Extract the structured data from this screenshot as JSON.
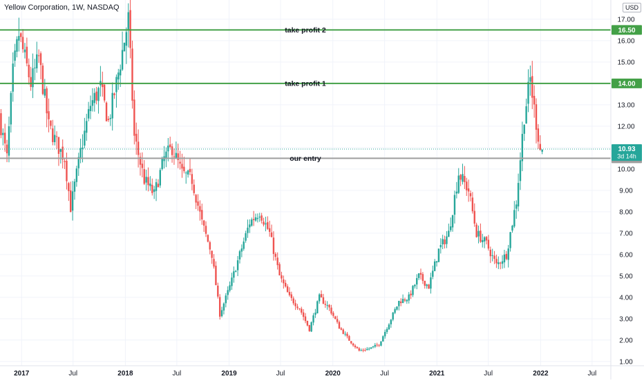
{
  "header": {
    "title": "Yellow Corporation, 1W, NASDAQ",
    "currency": "USD"
  },
  "colors": {
    "up": "#26a69a",
    "down": "#ef5350",
    "level_green": "#43a047",
    "entry_line": "#9e9e9e",
    "axis_text": "#131722",
    "grid": "#f0f3fa"
  },
  "chart_data": {
    "type": "candlestick",
    "title": "Yellow Corporation, 1W, NASDAQ",
    "xlabel": "",
    "ylabel": "",
    "ylim": [
      0.8,
      17.9
    ],
    "x_range": [
      "2016-10-17",
      "2022-09-05"
    ],
    "y_ticks": [
      "1.00",
      "2.00",
      "3.00",
      "4.00",
      "5.00",
      "6.00",
      "7.00",
      "8.00",
      "9.00",
      "10.00",
      "11.00",
      "12.00",
      "13.00",
      "14.00",
      "15.00",
      "16.00",
      "17.00"
    ],
    "x_ticks": [
      {
        "label": "2017",
        "date": "2017-01-01"
      },
      {
        "label": "Jul",
        "date": "2017-07-01"
      },
      {
        "label": "2018",
        "date": "2018-01-01"
      },
      {
        "label": "Jul",
        "date": "2018-07-01"
      },
      {
        "label": "2019",
        "date": "2019-01-01"
      },
      {
        "label": "Jul",
        "date": "2019-07-01"
      },
      {
        "label": "2020",
        "date": "2020-01-01"
      },
      {
        "label": "Jul",
        "date": "2020-07-01"
      },
      {
        "label": "2021",
        "date": "2021-01-01"
      },
      {
        "label": "Jul",
        "date": "2021-07-01"
      },
      {
        "label": "2022",
        "date": "2022-01-01"
      },
      {
        "label": "Jul",
        "date": "2022-07-01"
      }
    ],
    "grid": true,
    "levels": [
      {
        "label": "take profit 2",
        "value": 16.5,
        "price_label": "16.50",
        "style": "green"
      },
      {
        "label": "take profit 1",
        "value": 14.0,
        "price_label": "14.00",
        "style": "green"
      },
      {
        "label": "our entry",
        "value": 10.5,
        "price_label": "10.50",
        "style": "gray"
      }
    ],
    "last_price": {
      "value": 10.93,
      "price_label": "10.93",
      "countdown": "3d 14h"
    },
    "price_path": [
      [
        "2016-10-17",
        12.5
      ],
      [
        "2016-11-14",
        10.5
      ],
      [
        "2016-12-05",
        14.5
      ],
      [
        "2016-12-26",
        16.3
      ],
      [
        "2017-02-06",
        14.0
      ],
      [
        "2017-03-06",
        15.2
      ],
      [
        "2017-04-10",
        12.0
      ],
      [
        "2017-05-15",
        11.0
      ],
      [
        "2017-06-05",
        10.5
      ],
      [
        "2017-06-26",
        8.2
      ],
      [
        "2017-07-31",
        10.8
      ],
      [
        "2017-09-04",
        13.0
      ],
      [
        "2017-10-09",
        13.8
      ],
      [
        "2017-11-06",
        12.2
      ],
      [
        "2017-12-04",
        14.0
      ],
      [
        "2017-12-25",
        15.5
      ],
      [
        "2018-01-15",
        17.0
      ],
      [
        "2018-02-05",
        11.5
      ],
      [
        "2018-03-12",
        9.5
      ],
      [
        "2018-04-16",
        8.8
      ],
      [
        "2018-05-21",
        10.5
      ],
      [
        "2018-06-18",
        11.0
      ],
      [
        "2018-07-23",
        9.8
      ],
      [
        "2018-08-27",
        9.5
      ],
      [
        "2018-10-01",
        7.5
      ],
      [
        "2018-11-05",
        6.0
      ],
      [
        "2018-12-03",
        3.2
      ],
      [
        "2019-01-07",
        4.5
      ],
      [
        "2019-02-11",
        6.0
      ],
      [
        "2019-03-18",
        7.5
      ],
      [
        "2019-04-22",
        8.0
      ],
      [
        "2019-05-27",
        7.0
      ],
      [
        "2019-07-01",
        5.0
      ],
      [
        "2019-08-05",
        4.0
      ],
      [
        "2019-09-09",
        3.5
      ],
      [
        "2019-10-14",
        2.5
      ],
      [
        "2019-11-18",
        4.0
      ],
      [
        "2019-12-23",
        3.5
      ],
      [
        "2020-01-27",
        2.6
      ],
      [
        "2020-03-02",
        2.0
      ],
      [
        "2020-04-06",
        1.5
      ],
      [
        "2020-05-11",
        1.6
      ],
      [
        "2020-06-15",
        1.8
      ],
      [
        "2020-07-20",
        2.8
      ],
      [
        "2020-08-24",
        3.8
      ],
      [
        "2020-09-28",
        4.0
      ],
      [
        "2020-11-02",
        5.0
      ],
      [
        "2020-12-07",
        4.5
      ],
      [
        "2021-01-11",
        6.2
      ],
      [
        "2021-02-15",
        7.0
      ],
      [
        "2021-03-22",
        9.8
      ],
      [
        "2021-04-26",
        9.0
      ],
      [
        "2021-05-24",
        7.0
      ],
      [
        "2021-06-28",
        6.5
      ],
      [
        "2021-08-02",
        5.5
      ],
      [
        "2021-09-06",
        6.0
      ],
      [
        "2021-10-11",
        8.5
      ],
      [
        "2021-11-08",
        12.5
      ],
      [
        "2021-11-29",
        14.2
      ],
      [
        "2021-12-13",
        12.8
      ],
      [
        "2022-01-03",
        10.93
      ]
    ]
  }
}
